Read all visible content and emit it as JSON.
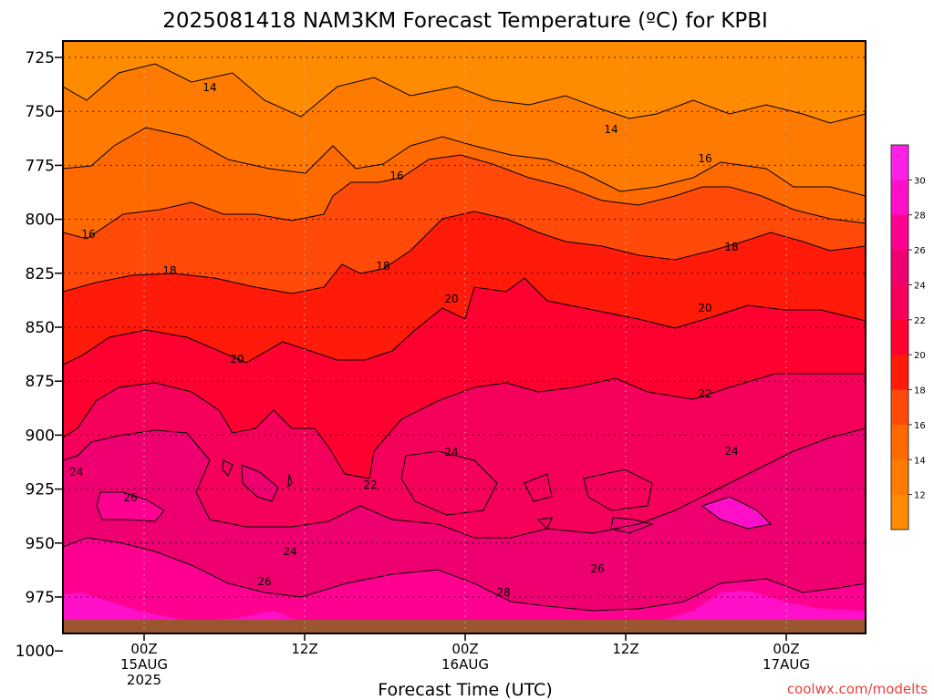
{
  "chart_data": {
    "type": "heatmap",
    "title": "2025081418 NAM3KM Forecast Temperature (ºC) for KPBI",
    "xlabel": "Forecast Time (UTC)",
    "ylabel": "",
    "y_ticks": [
      "725",
      "750",
      "775",
      "800",
      "825",
      "850",
      "875",
      "900",
      "925",
      "950",
      "975",
      "1000"
    ],
    "x_ticks": [
      {
        "line1": "00Z",
        "line2": "15AUG",
        "line3": "2025"
      },
      {
        "line1": "12Z",
        "line2": "",
        "line3": ""
      },
      {
        "line1": "00Z",
        "line2": "16AUG",
        "line3": ""
      },
      {
        "line1": "12Z",
        "line2": "",
        "line3": ""
      },
      {
        "line1": "00Z",
        "line2": "17AUG",
        "line3": ""
      }
    ],
    "colorbar": {
      "ticks": [
        "12",
        "14",
        "16",
        "18",
        "20",
        "22",
        "24",
        "26",
        "28",
        "30"
      ],
      "colors": [
        "#ff8c00",
        "#ff7a00",
        "#ff6a00",
        "#ff4a0a",
        "#ff1a0a",
        "#ff0030",
        "#f5005a",
        "#ee0070",
        "#ff0090",
        "#ff10c8",
        "#ff20e6"
      ]
    },
    "contour_labels": [
      "14",
      "14",
      "16",
      "16",
      "16",
      "18",
      "18",
      "18",
      "20",
      "20",
      "20",
      "22",
      "22",
      "24",
      "24",
      "24",
      "24",
      "26",
      "26",
      "26",
      "28"
    ],
    "grid": true,
    "credit": "coolwx.com/modelts"
  }
}
